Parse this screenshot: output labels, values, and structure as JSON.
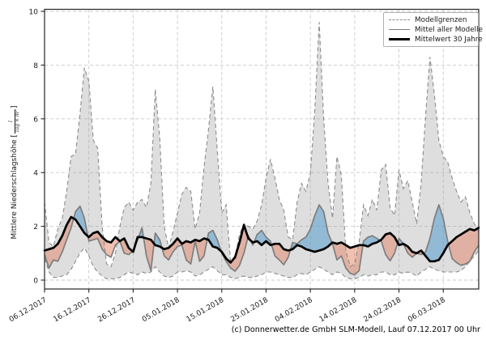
{
  "header": {
    "caption": "(c) Donnerwetter.de GmbH SLM-Modell, Lauf 07.12.2017 00 Uhr"
  },
  "y_axis": {
    "label_prefix": "Mittlere Niederschlagshöhe [",
    "unit_numerator": "l",
    "unit_denominator": "Tag × m²",
    "label_suffix": "]"
  },
  "legend": {
    "items": [
      {
        "label": "Modellgrenzen",
        "style": "dashed-gray"
      },
      {
        "label": "Mittel aller Modelle",
        "style": "solid-gray"
      },
      {
        "label": "Mittelwert 30 Jahre",
        "style": "thick-black"
      }
    ]
  },
  "colors": {
    "grid": "#c9c9c9",
    "frame": "#262626",
    "band_fill": "rgba(153,153,153,0.32)",
    "boundary_dash": "#8c8c8c",
    "model_mean_line": "#7d7d7d",
    "climate_mean_line": "#000000",
    "fill_above_normal": "rgba(86,157,205,0.55)",
    "fill_below_normal": "rgba(226,132,102,0.5)",
    "tick_text": "#1a1a1a"
  },
  "chart_data": {
    "type": "line",
    "title": "",
    "xlabel": "",
    "ylabel": "Mittlere Niederschlagshöhe [l/(Tag × m²)]",
    "x_start_date": "06.12.2017",
    "x_step_days": 1,
    "n_points": 99,
    "x_tick_positions": [
      0,
      10,
      20,
      30,
      40,
      50,
      60,
      70,
      80,
      90
    ],
    "x_tick_labels": [
      "06.12.2017",
      "16.12.2017",
      "26.12.2017",
      "05.01.2018",
      "15.01.2018",
      "25.01.2018",
      "04.02.2018",
      "14.02.2018",
      "24.02.2018",
      "06.03.2018"
    ],
    "yticks": [
      0,
      2,
      4,
      6,
      8,
      10
    ],
    "ylim": [
      -0.35,
      10.08
    ],
    "grid": true,
    "legend_position": "upper right",
    "fills": {
      "band": {
        "between": [
          "Modellgrenze oben",
          "Modellgrenze unten"
        ],
        "meaning": "Spannweite aller Modelle"
      },
      "above_normal": {
        "between": [
          "Mittel aller Modelle",
          "Mittelwert 30 Jahre"
        ],
        "where": "model mean > 30yr mean",
        "color_key": "fill_above_normal"
      },
      "below_normal": {
        "between": [
          "Mittel aller Modelle",
          "Mittelwert 30 Jahre"
        ],
        "where": "model mean < 30yr mean",
        "color_key": "fill_below_normal"
      }
    },
    "series": [
      {
        "name": "Modellgrenze oben",
        "legend": "Modellgrenzen",
        "style": "dashed",
        "values": [
          2.9,
          1.4,
          1.25,
          1.9,
          2.3,
          3.3,
          4.6,
          4.7,
          6.2,
          7.9,
          7.4,
          5.2,
          4.9,
          2.0,
          0.6,
          0.5,
          1.0,
          2.0,
          2.7,
          2.9,
          2.6,
          2.9,
          3.0,
          2.7,
          3.6,
          7.1,
          5.3,
          2.0,
          1.2,
          1.8,
          2.5,
          3.2,
          3.45,
          3.3,
          1.9,
          2.5,
          4.2,
          5.6,
          7.2,
          4.8,
          2.5,
          2.8,
          0.7,
          0.9,
          1.7,
          2.1,
          2.0,
          1.9,
          2.2,
          2.8,
          3.8,
          4.5,
          3.8,
          3.0,
          2.6,
          1.6,
          1.5,
          2.9,
          3.6,
          3.3,
          4.0,
          6.3,
          9.6,
          6.0,
          3.6,
          2.3,
          4.6,
          3.9,
          1.1,
          0.5,
          0.6,
          1.4,
          2.8,
          2.4,
          3.0,
          2.6,
          4.1,
          4.3,
          2.7,
          2.4,
          4.1,
          3.4,
          3.7,
          2.9,
          2.1,
          3.6,
          6.1,
          8.3,
          6.9,
          5.2,
          4.6,
          4.4,
          3.8,
          3.3,
          2.9,
          3.1,
          2.5,
          2.1,
          1.8
        ]
      },
      {
        "name": "Modellgrenze unten",
        "legend": "Modellgrenzen",
        "style": "dashed",
        "values": [
          0.8,
          0.3,
          0.1,
          0.1,
          0.15,
          0.2,
          0.4,
          0.7,
          1.0,
          1.2,
          0.9,
          0.5,
          0.3,
          0.15,
          0.05,
          0.05,
          0.05,
          0.1,
          0.2,
          0.3,
          0.25,
          0.2,
          0.3,
          0.25,
          0.3,
          0.5,
          0.3,
          0.15,
          0.1,
          0.15,
          0.3,
          0.3,
          0.35,
          0.3,
          0.15,
          0.2,
          0.3,
          0.4,
          0.5,
          0.35,
          0.2,
          0.2,
          0.1,
          0.05,
          0.1,
          0.15,
          0.1,
          0.1,
          0.15,
          0.2,
          0.3,
          0.3,
          0.25,
          0.2,
          0.15,
          0.1,
          0.1,
          0.2,
          0.25,
          0.2,
          0.3,
          0.4,
          0.5,
          0.4,
          0.3,
          0.2,
          0.3,
          0.25,
          0.1,
          0.05,
          0.05,
          0.1,
          0.2,
          0.15,
          0.2,
          0.2,
          0.3,
          0.3,
          0.2,
          0.2,
          0.3,
          0.25,
          0.3,
          0.25,
          0.15,
          0.3,
          0.4,
          0.5,
          0.4,
          0.35,
          0.3,
          0.3,
          0.3,
          0.3,
          0.35,
          0.5,
          0.7,
          0.9,
          1.1
        ]
      },
      {
        "name": "Mittel aller Modelle",
        "legend": "Mittel aller Modelle",
        "style": "solid-gray",
        "values": [
          0.95,
          0.45,
          0.75,
          0.7,
          1.05,
          1.5,
          1.95,
          2.55,
          2.75,
          2.3,
          1.45,
          1.5,
          1.55,
          1.15,
          0.95,
          0.85,
          1.3,
          1.45,
          1.0,
          0.95,
          1.1,
          1.5,
          1.95,
          0.9,
          0.35,
          1.75,
          1.5,
          0.9,
          0.75,
          1.05,
          1.25,
          1.3,
          0.75,
          0.6,
          1.45,
          0.7,
          0.9,
          1.75,
          1.85,
          1.5,
          1.0,
          0.7,
          0.45,
          0.33,
          0.55,
          1.0,
          1.65,
          1.3,
          1.7,
          1.85,
          1.6,
          1.45,
          0.9,
          0.75,
          0.57,
          0.85,
          1.4,
          1.35,
          1.5,
          1.6,
          1.9,
          2.4,
          2.8,
          2.55,
          1.75,
          1.35,
          0.75,
          0.9,
          0.45,
          0.25,
          0.2,
          0.35,
          1.45,
          1.6,
          1.65,
          1.55,
          1.45,
          0.95,
          0.72,
          1.0,
          1.55,
          1.35,
          1.0,
          0.85,
          1.0,
          0.95,
          1.05,
          1.55,
          2.3,
          2.8,
          2.3,
          1.45,
          0.8,
          0.65,
          0.55,
          0.6,
          0.7,
          1.05,
          1.3
        ]
      },
      {
        "name": "Mittelwert 30 Jahre",
        "legend": "Mittelwert 30 Jahre",
        "style": "thick-black",
        "values": [
          1.1,
          1.15,
          1.2,
          1.35,
          1.65,
          2.05,
          2.35,
          2.25,
          2.0,
          1.75,
          1.6,
          1.75,
          1.8,
          1.6,
          1.45,
          1.4,
          1.6,
          1.45,
          1.55,
          1.2,
          1.05,
          1.6,
          1.6,
          1.55,
          1.5,
          1.3,
          1.25,
          1.15,
          1.2,
          1.35,
          1.55,
          1.35,
          1.45,
          1.4,
          1.5,
          1.45,
          1.55,
          1.5,
          1.25,
          1.2,
          1.05,
          0.8,
          0.65,
          0.85,
          1.4,
          2.05,
          1.55,
          1.4,
          1.45,
          1.3,
          1.45,
          1.3,
          1.35,
          1.35,
          1.15,
          1.1,
          1.15,
          1.3,
          1.25,
          1.15,
          1.1,
          1.05,
          1.1,
          1.15,
          1.25,
          1.4,
          1.35,
          1.4,
          1.3,
          1.2,
          1.25,
          1.3,
          1.3,
          1.25,
          1.35,
          1.4,
          1.5,
          1.7,
          1.75,
          1.6,
          1.3,
          1.35,
          1.25,
          1.05,
          1.0,
          1.1,
          0.9,
          0.7,
          0.7,
          0.75,
          1.0,
          1.3,
          1.45,
          1.6,
          1.7,
          1.8,
          1.9,
          1.85,
          1.95
        ]
      }
    ]
  }
}
